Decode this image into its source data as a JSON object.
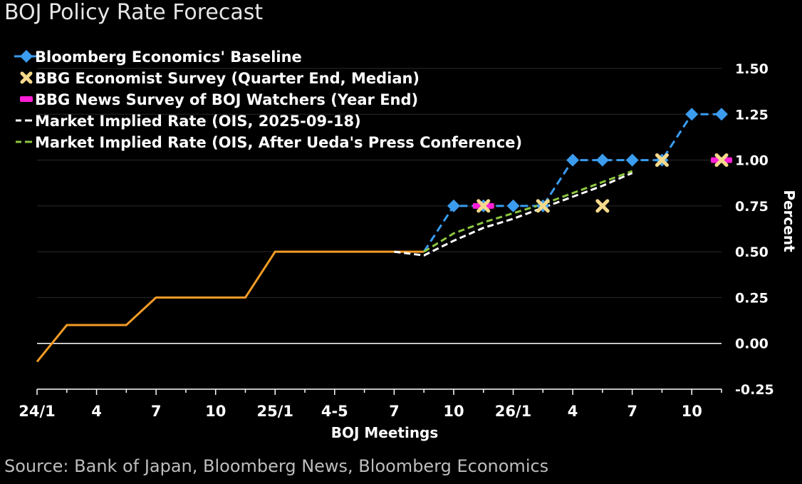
{
  "chart_data": {
    "type": "line",
    "title": "BOJ Policy Rate Forecast",
    "source": "Source: Bank of Japan, Bloomberg News, Bloomberg Economics",
    "xlabel": "BOJ Meetings",
    "ylabel": "Percent",
    "ylim": [
      -0.25,
      1.5
    ],
    "yticks": [
      {
        "value": -0.25,
        "label": "-0.25"
      },
      {
        "value": 0.0,
        "label": "0.00"
      },
      {
        "value": 0.25,
        "label": "0.25"
      },
      {
        "value": 0.5,
        "label": "0.50"
      },
      {
        "value": 0.75,
        "label": "0.75"
      },
      {
        "value": 1.0,
        "label": "1.00"
      },
      {
        "value": 1.25,
        "label": "1.25"
      },
      {
        "value": 1.5,
        "label": "1.50"
      }
    ],
    "x_count": 24,
    "x_ticks": [
      {
        "x": 0,
        "label": "24/1"
      },
      {
        "x": 2,
        "label": "4"
      },
      {
        "x": 4,
        "label": "7"
      },
      {
        "x": 6,
        "label": "10"
      },
      {
        "x": 8,
        "label": "25/1"
      },
      {
        "x": 10,
        "label": "4-5"
      },
      {
        "x": 12,
        "label": "7"
      },
      {
        "x": 14,
        "label": "10"
      },
      {
        "x": 16,
        "label": "26/1"
      },
      {
        "x": 18,
        "label": "4"
      },
      {
        "x": 20,
        "label": "7"
      },
      {
        "x": 22,
        "label": "10"
      }
    ],
    "series": [
      {
        "name": "Policy Rate",
        "color": "#f39c26",
        "style": "solid",
        "points": [
          [
            0,
            -0.1
          ],
          [
            1,
            0.1
          ],
          [
            2,
            0.1
          ],
          [
            3,
            0.1
          ],
          [
            4,
            0.25
          ],
          [
            5,
            0.25
          ],
          [
            6,
            0.25
          ],
          [
            7,
            0.25
          ],
          [
            8,
            0.5
          ],
          [
            9,
            0.5
          ],
          [
            10,
            0.5
          ],
          [
            11,
            0.5
          ],
          [
            12,
            0.5
          ],
          [
            13,
            0.5
          ]
        ]
      },
      {
        "name": "Bloomberg Economics' Baseline",
        "color": "#3b9cf0",
        "style": "dashed",
        "marker": "diamond",
        "points": [
          [
            13,
            0.5
          ],
          [
            14,
            0.75
          ],
          [
            15,
            0.75
          ],
          [
            16,
            0.75
          ],
          [
            17,
            0.75
          ],
          [
            18,
            1.0
          ],
          [
            19,
            1.0
          ],
          [
            20,
            1.0
          ],
          [
            21,
            1.0
          ],
          [
            22,
            1.25
          ],
          [
            23,
            1.25
          ]
        ]
      },
      {
        "name": "Market Implied Rate (OIS, 2025-09-18)",
        "color": "#ffffff",
        "style": "dashed",
        "points": [
          [
            12,
            0.5
          ],
          [
            13,
            0.48
          ],
          [
            14,
            0.56
          ],
          [
            15,
            0.63
          ],
          [
            16,
            0.68
          ],
          [
            17,
            0.74
          ],
          [
            18,
            0.8
          ],
          [
            19,
            0.86
          ],
          [
            20,
            0.93
          ]
        ]
      },
      {
        "name": "Market Implied Rate (OIS, After Ueda's Press Conference)",
        "color": "#8cc63f",
        "style": "dashed",
        "points": [
          [
            13,
            0.5
          ],
          [
            14,
            0.6
          ],
          [
            15,
            0.66
          ],
          [
            16,
            0.71
          ],
          [
            17,
            0.76
          ],
          [
            18,
            0.82
          ],
          [
            19,
            0.88
          ],
          [
            20,
            0.94
          ]
        ]
      },
      {
        "name": "BBG Economist Survey (Quarter End, Median)",
        "color": "#f5d98b",
        "style": "marker",
        "marker": "x",
        "points": [
          [
            15,
            0.75
          ],
          [
            17,
            0.75
          ],
          [
            19,
            0.75
          ],
          [
            21,
            1.0
          ],
          [
            23,
            1.0
          ]
        ]
      },
      {
        "name": "BBG News Survey of BOJ Watchers (Year End)",
        "color": "#ff1fd6",
        "style": "marker",
        "marker": "bar",
        "points": [
          [
            15,
            0.75
          ],
          [
            23,
            1.0
          ]
        ]
      }
    ],
    "legend": [
      {
        "label": "Bloomberg Economics' Baseline",
        "symbol": "diamond",
        "color": "#3b9cf0"
      },
      {
        "label": "BBG Economist Survey (Quarter End, Median)",
        "symbol": "x",
        "color": "#f5d98b"
      },
      {
        "label": "BBG News Survey of BOJ Watchers (Year End)",
        "symbol": "bar",
        "color": "#ff1fd6"
      },
      {
        "label": "Market Implied Rate (OIS, 2025-09-18)",
        "symbol": "dash",
        "color": "#ffffff"
      },
      {
        "label": "Market Implied Rate (OIS, After Ueda's Press Conference)",
        "symbol": "dash",
        "color": "#8cc63f"
      }
    ]
  }
}
